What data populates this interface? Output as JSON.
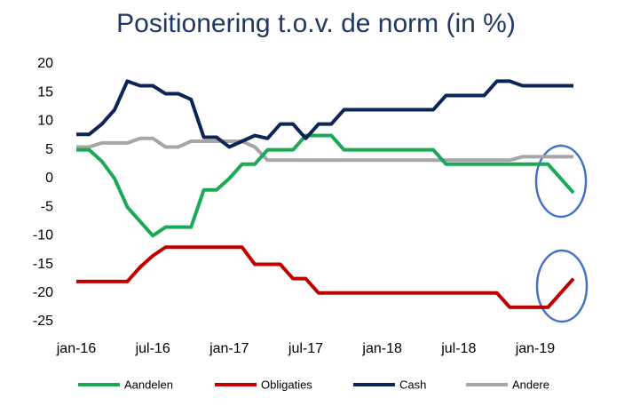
{
  "chart_data": {
    "type": "line",
    "title": "Positionering t.o.v. de norm (in %)",
    "categories": [
      "jan-16",
      null,
      null,
      null,
      null,
      null,
      "jul-16",
      null,
      null,
      null,
      null,
      null,
      "jan-17",
      null,
      null,
      null,
      null,
      null,
      "jul-17",
      null,
      null,
      null,
      null,
      null,
      "jan-18",
      null,
      null,
      null,
      null,
      null,
      "jul-18",
      null,
      null,
      null,
      null,
      null,
      "jan-19",
      null,
      null,
      null
    ],
    "series": [
      {
        "name": "Aandelen",
        "color": "#1aaa55",
        "values": [
          5,
          5,
          3,
          0,
          -5,
          -7.5,
          -10,
          -8.5,
          -8.5,
          -8.5,
          -2,
          -2,
          0,
          2.5,
          2.5,
          5,
          5,
          5,
          7.5,
          7.5,
          7.5,
          5,
          5,
          5,
          5,
          5,
          5,
          5,
          5,
          2.5,
          2.5,
          2.5,
          2.5,
          2.5,
          2.5,
          2.5,
          2.5,
          2.5,
          0,
          -2.5
        ]
      },
      {
        "name": "Obligaties",
        "color": "#c00000",
        "values": [
          -18,
          -18,
          -18,
          -18,
          -18,
          -15.5,
          -13.5,
          -12,
          -12,
          -12,
          -12,
          -12,
          -12,
          -12,
          -15,
          -15,
          -15,
          -17.5,
          -17.5,
          -20,
          -20,
          -20,
          -20,
          -20,
          -20,
          -20,
          -20,
          -20,
          -20,
          -20,
          -20,
          -20,
          -20,
          -20,
          -22.5,
          -22.5,
          -22.5,
          -22.5,
          -20,
          -17.5
        ]
      },
      {
        "name": "Cash",
        "color": "#0d2456",
        "values": [
          7.7,
          7.7,
          9.5,
          12,
          17,
          16.2,
          16.2,
          14.8,
          14.8,
          13.8,
          7.2,
          7.2,
          5.5,
          6.5,
          7.5,
          7,
          9.5,
          9.5,
          7,
          9.5,
          9.5,
          12,
          12,
          12,
          12,
          12,
          12,
          12,
          12,
          14.5,
          14.5,
          14.5,
          14.5,
          17,
          17,
          16.2,
          16.2,
          16.2,
          16.2,
          16.2
        ]
      },
      {
        "name": "Andere",
        "color": "#a6a6a6",
        "values": [
          5.5,
          5.5,
          6.2,
          6.2,
          6.2,
          7,
          7,
          5.5,
          5.5,
          6.5,
          6.5,
          6.5,
          6.5,
          6.5,
          5.5,
          3.2,
          3.2,
          3.2,
          3.2,
          3.2,
          3.2,
          3.2,
          3.2,
          3.2,
          3.2,
          3.2,
          3.2,
          3.2,
          3.2,
          3.2,
          3.2,
          3.2,
          3.2,
          3.2,
          3.2,
          3.8,
          3.8,
          3.8,
          3.8,
          3.8
        ]
      }
    ],
    "ylim": [
      -25,
      20
    ],
    "yticks": [
      20,
      15,
      10,
      5,
      0,
      -5,
      -10,
      -15,
      -20,
      -25
    ],
    "grid": false
  }
}
